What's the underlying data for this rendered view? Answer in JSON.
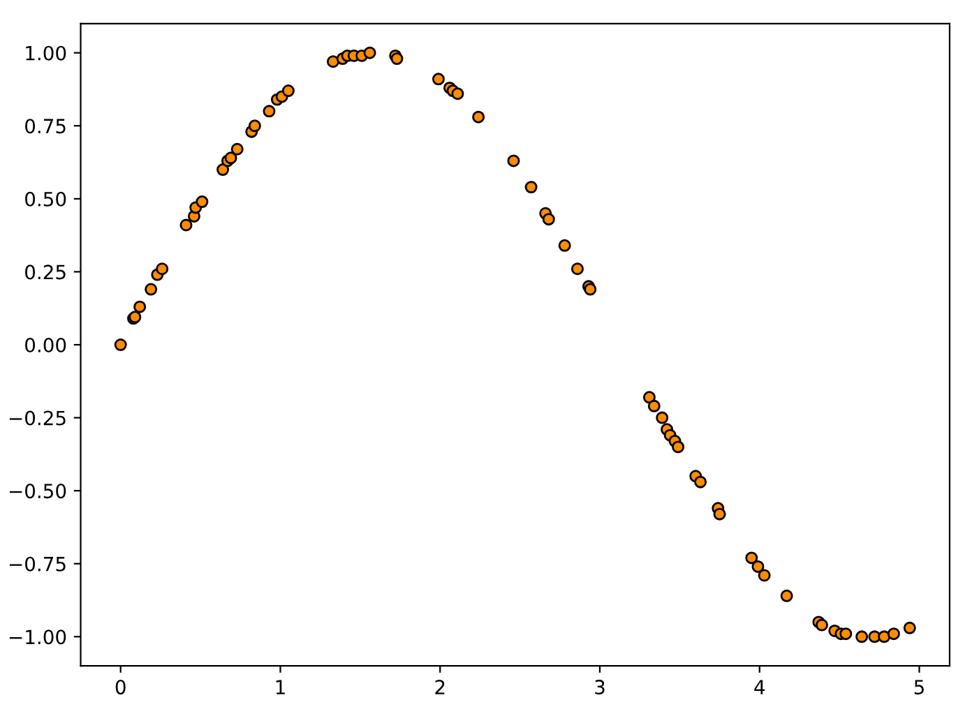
{
  "chart_data": {
    "type": "scatter",
    "series": [
      {
        "color": "#ff8c00",
        "x": [
          0,
          0.08,
          0.09,
          0.12,
          0.19,
          0.23,
          0.26,
          0.41,
          0.46,
          0.47,
          0.51,
          0.64,
          0.67,
          0.69,
          0.73,
          0.82,
          0.84,
          0.93,
          0.98,
          1.01,
          1.05,
          1.33,
          1.39,
          1.42,
          1.46,
          1.51,
          1.56,
          1.72,
          1.73,
          1.99,
          2.06,
          2.08,
          2.11,
          2.24,
          2.46,
          2.57,
          2.66,
          2.68,
          2.78,
          2.86,
          2.93,
          2.94,
          3.31,
          3.34,
          3.39,
          3.42,
          3.44,
          3.47,
          3.49,
          3.6,
          3.63,
          3.74,
          3.75,
          3.95,
          3.99,
          4.03,
          4.17,
          4.37,
          4.39,
          4.47,
          4.51,
          4.54,
          4.64,
          4.72,
          4.78,
          4.84,
          4.94
        ],
        "values": [
          0,
          0.09,
          0.095,
          0.13,
          0.19,
          0.24,
          0.26,
          0.41,
          0.44,
          0.47,
          0.49,
          0.6,
          0.63,
          0.64,
          0.67,
          0.73,
          0.75,
          0.8,
          0.84,
          0.85,
          0.87,
          0.97,
          0.98,
          0.99,
          0.99,
          0.99,
          1.0,
          0.99,
          0.98,
          0.91,
          0.88,
          0.87,
          0.86,
          0.78,
          0.63,
          0.54,
          0.45,
          0.43,
          0.34,
          0.26,
          0.2,
          0.19,
          -0.18,
          -0.21,
          -0.25,
          -0.29,
          -0.31,
          -0.33,
          -0.35,
          -0.45,
          -0.47,
          -0.56,
          -0.58,
          -0.73,
          -0.76,
          -0.79,
          -0.86,
          -0.95,
          -0.96,
          -0.98,
          -0.99,
          -0.99,
          -1.0,
          -1.0,
          -1.0,
          -0.99,
          -0.97
        ]
      }
    ],
    "marker": "circle",
    "xlim": [
      -0.25,
      5.19
    ],
    "ylim": [
      -1.1,
      1.1
    ],
    "xticks": [
      0,
      1,
      2,
      3,
      4,
      5
    ],
    "yticks": [
      {
        "value": -1,
        "label": "−1.00"
      },
      {
        "value": -0.75,
        "label": "−0.75"
      },
      {
        "value": -0.5,
        "label": "−0.50"
      },
      {
        "value": -0.25,
        "label": "−0.25"
      },
      {
        "value": 0,
        "label": "0.00"
      },
      {
        "value": 0.25,
        "label": "0.25"
      },
      {
        "value": 0.5,
        "label": "0.50"
      },
      {
        "value": 0.75,
        "label": "0.75"
      },
      {
        "value": 1,
        "label": "1.00"
      }
    ],
    "grid": false
  }
}
